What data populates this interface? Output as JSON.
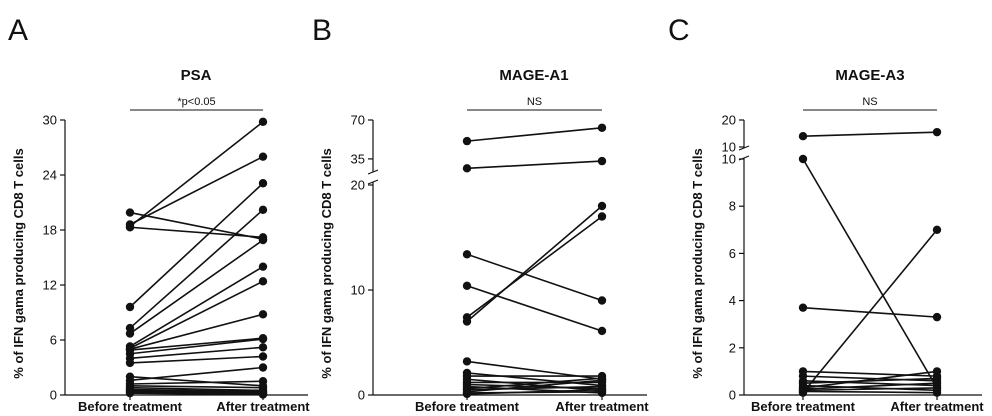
{
  "chart_data": [
    {
      "panel": "A",
      "type": "line",
      "title": "PSA",
      "ylabel": "% of IFN gama producing CD8 T cells",
      "categories": [
        "Before treatment",
        "After treatment"
      ],
      "ylim": [
        0,
        30
      ],
      "yticks": [
        "0",
        "6",
        "12",
        "18",
        "24",
        "30"
      ],
      "significance": "*p<0.05",
      "pairs": [
        [
          19.9,
          17.0
        ],
        [
          18.6,
          26.0
        ],
        [
          18.4,
          29.8
        ],
        [
          18.3,
          17.2
        ],
        [
          9.6,
          23.1
        ],
        [
          7.3,
          20.2
        ],
        [
          6.7,
          16.9
        ],
        [
          5.3,
          14.0
        ],
        [
          5.1,
          12.4
        ],
        [
          5.0,
          8.8
        ],
        [
          4.9,
          6.2
        ],
        [
          4.5,
          6.1
        ],
        [
          4.0,
          5.2
        ],
        [
          3.5,
          4.2
        ],
        [
          2.0,
          1.0
        ],
        [
          1.6,
          3.0
        ],
        [
          1.2,
          1.5
        ],
        [
          1.0,
          0.8
        ],
        [
          0.8,
          0.5
        ],
        [
          0.6,
          0.4
        ],
        [
          0.5,
          0.3
        ],
        [
          0.4,
          0.2
        ],
        [
          0.3,
          0.1
        ],
        [
          0.2,
          0.05
        ]
      ]
    },
    {
      "panel": "B",
      "type": "line",
      "title": "MAGE-A1",
      "ylabel": "% of IFN gama producing CD8 T cells",
      "categories": [
        "Before treatment",
        "After treatment"
      ],
      "ylim": [
        0,
        70
      ],
      "yaxis_break": [
        20,
        25
      ],
      "yticks": [
        "0",
        "10",
        "20",
        "35",
        "70"
      ],
      "significance": "NS",
      "pairs": [
        [
          51.0,
          63.0
        ],
        [
          26.5,
          33.0
        ],
        [
          13.4,
          9.0
        ],
        [
          10.4,
          6.1
        ],
        [
          7.4,
          17.0
        ],
        [
          7.0,
          18.0
        ],
        [
          3.2,
          1.5
        ],
        [
          2.1,
          0.9
        ],
        [
          1.8,
          1.8
        ],
        [
          1.5,
          0.4
        ],
        [
          1.2,
          1.2
        ],
        [
          1.0,
          0.6
        ],
        [
          0.8,
          0.2
        ],
        [
          0.6,
          1.6
        ],
        [
          0.5,
          0.8
        ],
        [
          0.3,
          1.4
        ],
        [
          0.2,
          0.3
        ],
        [
          0.1,
          0.5
        ]
      ]
    },
    {
      "panel": "C",
      "type": "line",
      "title": "MAGE-A3",
      "ylabel": "% of IFN gama producing CD8 T cells",
      "categories": [
        "Before treatment",
        "After treatment"
      ],
      "ylim": [
        0,
        20
      ],
      "yaxis_break": [
        10,
        10
      ],
      "yticks": [
        "0",
        "2",
        "4",
        "6",
        "8",
        "10",
        "10",
        "20"
      ],
      "significance": "NS",
      "pairs": [
        [
          14.0,
          15.5
        ],
        [
          10.0,
          0.3
        ],
        [
          3.7,
          3.3
        ],
        [
          1.0,
          0.8
        ],
        [
          0.8,
          0.6
        ],
        [
          0.6,
          0.4
        ],
        [
          0.5,
          0.7
        ],
        [
          0.4,
          0.2
        ],
        [
          0.3,
          1.0
        ],
        [
          0.25,
          0.5
        ],
        [
          0.2,
          0.3
        ],
        [
          0.15,
          0.1
        ],
        [
          0.1,
          7.0
        ]
      ]
    }
  ]
}
